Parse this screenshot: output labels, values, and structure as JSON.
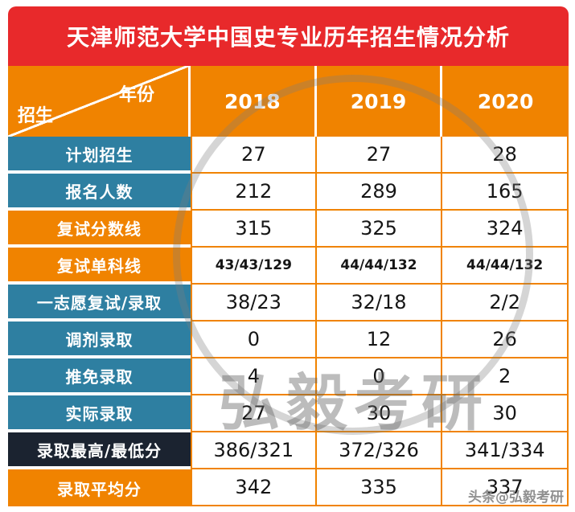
{
  "title": "天津师范大学中国史专业历年招生情况分析",
  "chart_data": {
    "type": "table",
    "title": "天津师范大学中国史专业历年招生情况分析",
    "corner": {
      "year": "年份",
      "admission": "招生"
    },
    "columns": [
      "2018",
      "2019",
      "2020"
    ],
    "rows": [
      {
        "label": "计划招生",
        "values": [
          "27",
          "27",
          "28"
        ],
        "color": "teal",
        "small": false
      },
      {
        "label": "报名人数",
        "values": [
          "212",
          "289",
          "165"
        ],
        "color": "teal",
        "small": false
      },
      {
        "label": "复试分数线",
        "values": [
          "315",
          "325",
          "324"
        ],
        "color": "orange",
        "small": false
      },
      {
        "label": "复试单科线",
        "values": [
          "43/43/129",
          "44/44/132",
          "44/44/132"
        ],
        "color": "orange",
        "small": true
      },
      {
        "label": "一志愿复试/录取",
        "values": [
          "38/23",
          "32/18",
          "2/2"
        ],
        "color": "teal",
        "small": false
      },
      {
        "label": "调剂录取",
        "values": [
          "0",
          "12",
          "26"
        ],
        "color": "teal",
        "small": false
      },
      {
        "label": "推免录取",
        "values": [
          "4",
          "0",
          "2"
        ],
        "color": "teal",
        "small": false
      },
      {
        "label": "实际录取",
        "values": [
          "27",
          "30",
          "30"
        ],
        "color": "teal",
        "small": false
      },
      {
        "label": "录取最高/最低分",
        "values": [
          "386/321",
          "372/326",
          "341/334"
        ],
        "color": "dark",
        "small": false
      },
      {
        "label": "录取平均分",
        "values": [
          "342",
          "335",
          "337"
        ],
        "color": "orange",
        "small": false
      }
    ]
  },
  "watermark": {
    "circle_text": "弘毅考研",
    "footer": "头条@弘毅考研"
  },
  "colors": {
    "red": "#e8292b",
    "orange": "#f08300",
    "teal": "#2e7fa1",
    "dark": "#1b2330",
    "border": "#f08300"
  }
}
